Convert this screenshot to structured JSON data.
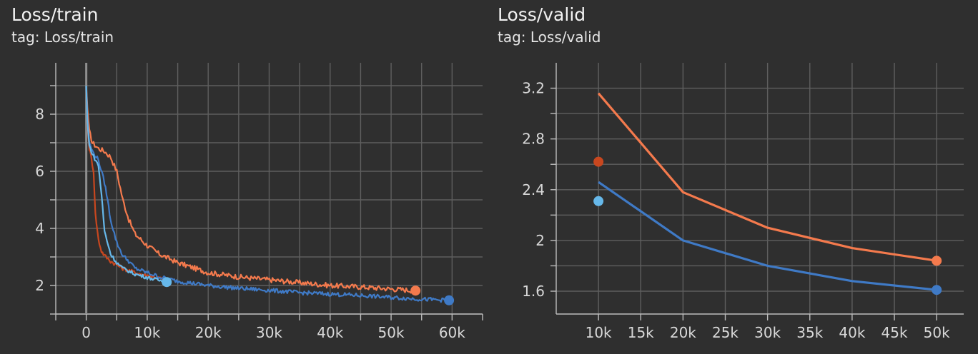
{
  "colors": {
    "background": "#2f2f2f",
    "grid": "#5f5f5f",
    "axis": "#bdbdbd",
    "zero_line": "#8f8f8f",
    "orange": "#f47a4d",
    "red_orange": "#c8471f",
    "blue": "#3f7ac6",
    "light_blue": "#66b8ea"
  },
  "panels": [
    {
      "title": "Loss/train",
      "tag": "tag: Loss/train"
    },
    {
      "title": "Loss/valid",
      "tag": "tag: Loss/valid"
    }
  ],
  "chart_data": [
    {
      "type": "line",
      "title": "Loss/train",
      "xlabel": "",
      "ylabel": "",
      "xlim": [
        -5000,
        65000
      ],
      "ylim": [
        1.0,
        9.8
      ],
      "xticks": [
        0,
        10000,
        20000,
        30000,
        40000,
        50000,
        60000
      ],
      "xtick_labels": [
        "0",
        "10k",
        "20k",
        "30k",
        "40k",
        "50k",
        "60k"
      ],
      "yticks": [
        2,
        4,
        6,
        8
      ],
      "ytick_labels": [
        "2",
        "4",
        "6",
        "8"
      ],
      "grid": true,
      "legend": "none",
      "series": [
        {
          "color": "#f47a4d",
          "x": [
            0,
            200,
            500,
            1000,
            2000,
            3000,
            4000,
            5000,
            6000,
            7000,
            8000,
            10000,
            12000,
            15000,
            20000,
            25000,
            30000,
            35000,
            40000,
            45000,
            50000,
            54000
          ],
          "y": [
            9.0,
            8.2,
            7.4,
            7.0,
            6.8,
            6.7,
            6.5,
            6.0,
            5.0,
            4.3,
            3.8,
            3.4,
            3.1,
            2.8,
            2.45,
            2.3,
            2.2,
            2.1,
            2.0,
            1.95,
            1.88,
            1.82
          ],
          "noise": 0.09
        },
        {
          "color": "#c8471f",
          "x": [
            0,
            200,
            500,
            800,
            1200,
            1500,
            2000,
            2500,
            3000,
            4000,
            6000,
            8000,
            10000,
            12000,
            13000
          ],
          "y": [
            9.0,
            7.6,
            6.8,
            6.5,
            6.0,
            4.5,
            3.6,
            3.2,
            3.05,
            2.85,
            2.6,
            2.45,
            2.35,
            2.25,
            2.2
          ],
          "noise": 0.07
        },
        {
          "color": "#3f7ac6",
          "x": [
            0,
            200,
            500,
            1000,
            2000,
            3000,
            3500,
            4000,
            5000,
            6000,
            7000,
            8000,
            10000,
            12000,
            15000,
            20000,
            25000,
            30000,
            35000,
            40000,
            45000,
            50000,
            55000,
            59500
          ],
          "y": [
            9.0,
            7.8,
            7.0,
            6.7,
            6.4,
            5.6,
            5.0,
            4.3,
            3.5,
            3.05,
            2.85,
            2.6,
            2.45,
            2.3,
            2.15,
            2.0,
            1.9,
            1.83,
            1.75,
            1.7,
            1.65,
            1.58,
            1.52,
            1.48
          ],
          "noise": 0.07
        },
        {
          "color": "#66b8ea",
          "x": [
            0,
            200,
            500,
            1000,
            2000,
            2500,
            3000,
            4000,
            5000,
            6000,
            8000,
            10000,
            12000,
            13200
          ],
          "y": [
            9.0,
            7.7,
            6.9,
            6.6,
            6.2,
            5.2,
            3.9,
            3.1,
            2.8,
            2.6,
            2.4,
            2.28,
            2.18,
            2.12
          ],
          "noise": 0.06
        }
      ],
      "end_points": [
        {
          "color": "#f47a4d",
          "x": 54000,
          "y": 1.82
        },
        {
          "color": "#3f7ac6",
          "x": 59500,
          "y": 1.48
        },
        {
          "color": "#66b8ea",
          "x": 13200,
          "y": 2.12
        }
      ]
    },
    {
      "type": "line",
      "title": "Loss/valid",
      "xlabel": "",
      "ylabel": "",
      "xlim": [
        5000,
        53200
      ],
      "ylim": [
        1.42,
        3.4
      ],
      "xticks": [
        10000,
        15000,
        20000,
        25000,
        30000,
        35000,
        40000,
        45000,
        50000
      ],
      "xtick_labels": [
        "10k",
        "15k",
        "20k",
        "25k",
        "30k",
        "35k",
        "40k",
        "45k",
        "50k"
      ],
      "yticks": [
        1.6,
        2.0,
        2.4,
        2.8,
        3.2
      ],
      "ytick_labels": [
        "1.6",
        "2",
        "2.4",
        "2.8",
        "3.2"
      ],
      "grid": true,
      "legend": "none",
      "series": [
        {
          "color": "#f47a4d",
          "x": [
            10000,
            20000,
            30000,
            40000,
            50000
          ],
          "y": [
            3.16,
            2.38,
            2.1,
            1.94,
            1.84
          ]
        },
        {
          "color": "#3f7ac6",
          "x": [
            10000,
            20000,
            30000,
            40000,
            50000
          ],
          "y": [
            2.46,
            2.0,
            1.8,
            1.68,
            1.61
          ]
        }
      ],
      "points": [
        {
          "color": "#c8471f",
          "x": 10000,
          "y": 2.62
        },
        {
          "color": "#66b8ea",
          "x": 10000,
          "y": 2.31
        },
        {
          "color": "#f47a4d",
          "x": 50000,
          "y": 1.84
        },
        {
          "color": "#3f7ac6",
          "x": 50000,
          "y": 1.61
        }
      ]
    }
  ]
}
